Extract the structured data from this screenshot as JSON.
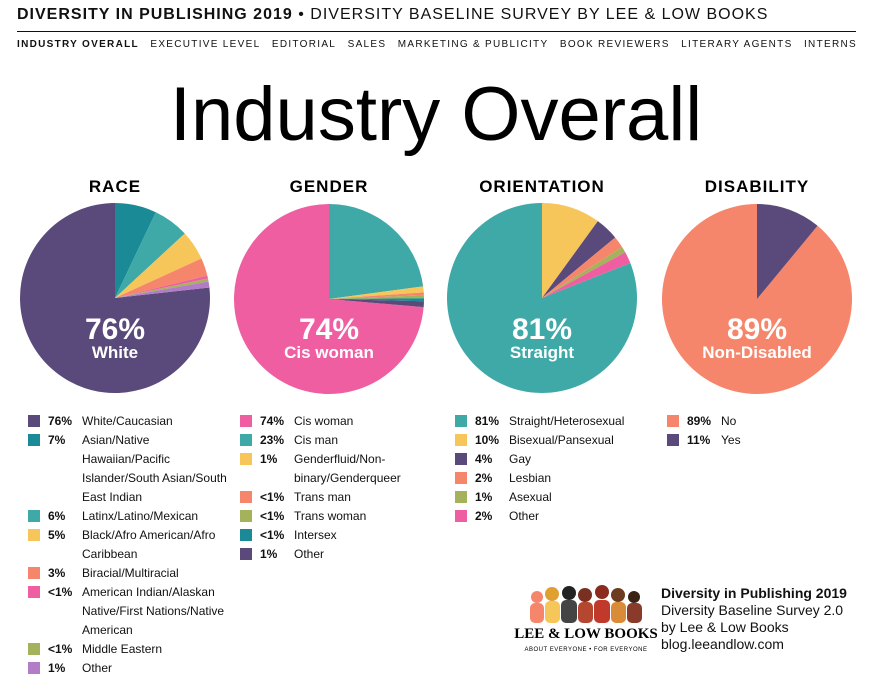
{
  "header": {
    "title": "DIVERSITY IN PUBLISHING 2019",
    "separator": "•",
    "subtitle": "DIVERSITY BASELINE SURVEY BY LEE & LOW BOOKS"
  },
  "nav": [
    "INDUSTRY OVERALL",
    "EXECUTIVE LEVEL",
    "EDITORIAL",
    "SALES",
    "MARKETING & PUBLICITY",
    "BOOK REVIEWERS",
    "LITERARY AGENTS",
    "INTERNS"
  ],
  "page_title": "Industry Overall",
  "chart_data": [
    {
      "type": "pie",
      "title": "RACE",
      "center_label": "White",
      "categories": [
        "White/Caucasian",
        "Asian/Native Hawaiian/Pacific Islander/South Asian/South East Indian",
        "Latinx/Latino/Mexican",
        "Black/Afro American/Afro Caribbean",
        "Biracial/Multiracial",
        "American Indian/Alaskan Native/First Nations/Native American",
        "Middle Eastern",
        "Other"
      ],
      "values": [
        76,
        7,
        6,
        5,
        3,
        0.5,
        0.5,
        1
      ],
      "value_labels": [
        "76%",
        "7%",
        "6%",
        "5%",
        "3%",
        "<1%",
        "<1%",
        "1%"
      ],
      "colors": [
        "#5a4a7b",
        "#1a8b96",
        "#3fa9a8",
        "#f6c65b",
        "#f6866b",
        "#ee5ea0",
        "#a4b35b",
        "#b27dc6"
      ]
    },
    {
      "type": "pie",
      "title": "GENDER",
      "center_label": "Cis woman",
      "categories": [
        "Cis woman",
        "Cis man",
        "Genderfluid/Non-binary/Genderqueer",
        "Trans man",
        "Trans woman",
        "Intersex",
        "Other"
      ],
      "values": [
        74,
        23,
        1,
        0.5,
        0.5,
        0.5,
        1
      ],
      "value_labels": [
        "74%",
        "23%",
        "1%",
        "<1%",
        "<1%",
        "<1%",
        "1%"
      ],
      "colors": [
        "#ee5ea0",
        "#3fa9a8",
        "#f6c65b",
        "#f6866b",
        "#a4b35b",
        "#1a8b96",
        "#5a4a7b"
      ]
    },
    {
      "type": "pie",
      "title": "ORIENTATION",
      "center_label": "Straight",
      "categories": [
        "Straight/Heterosexual",
        "Bisexual/Pansexual",
        "Gay",
        "Lesbian",
        "Asexual",
        "Other"
      ],
      "values": [
        81,
        10,
        4,
        2,
        1,
        2
      ],
      "value_labels": [
        "81%",
        "10%",
        "4%",
        "2%",
        "1%",
        "2%"
      ],
      "colors": [
        "#3fa9a8",
        "#f6c65b",
        "#5a4a7b",
        "#f6866b",
        "#a4b35b",
        "#ee5ea0"
      ]
    },
    {
      "type": "pie",
      "title": "DISABILITY",
      "center_label": "Non-Disabled",
      "categories": [
        "No",
        "Yes"
      ],
      "values": [
        89,
        11
      ],
      "value_labels": [
        "89%",
        "11%"
      ],
      "colors": [
        "#f6866b",
        "#5a4a7b"
      ]
    }
  ],
  "footer": {
    "logo": "LEE & LOW BOOKS",
    "tagline": "ABOUT EVERYONE • FOR EVERYONE",
    "lines": [
      "Diversity in Publishing 2019",
      "Diversity Baseline Survey 2.0",
      "by Lee & Low Books",
      "blog.leeandlow.com"
    ]
  }
}
